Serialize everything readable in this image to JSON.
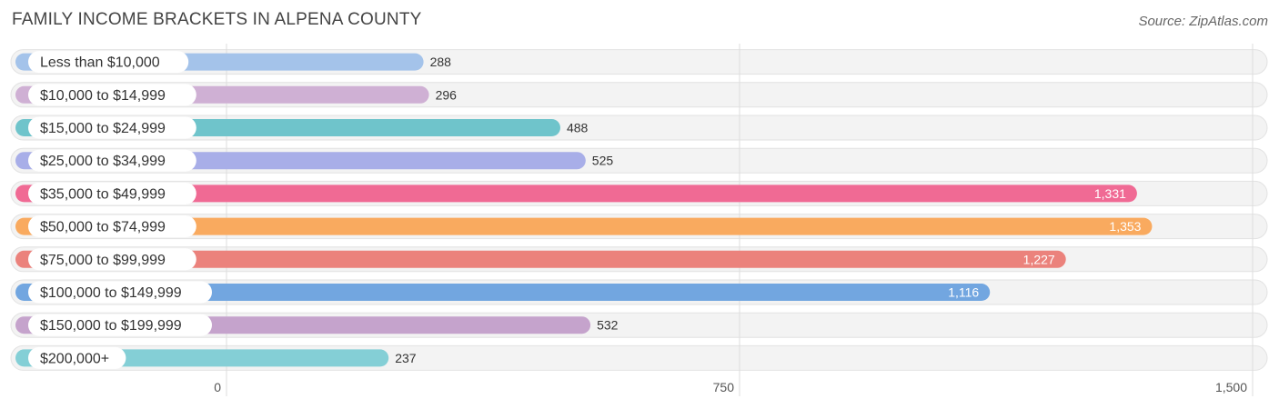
{
  "header": {
    "title": "FAMILY INCOME BRACKETS IN ALPENA COUNTY",
    "source": "Source: ZipAtlas.com"
  },
  "chart_data": {
    "type": "bar",
    "orientation": "horizontal",
    "title": "FAMILY INCOME BRACKETS IN ALPENA COUNTY",
    "categories": [
      "Less than $10,000",
      "$10,000 to $14,999",
      "$15,000 to $24,999",
      "$25,000 to $34,999",
      "$35,000 to $49,999",
      "$50,000 to $74,999",
      "$75,000 to $99,999",
      "$100,000 to $149,999",
      "$150,000 to $199,999",
      "$200,000+"
    ],
    "values": [
      288,
      296,
      488,
      525,
      1331,
      1353,
      1227,
      1116,
      532,
      237
    ],
    "value_labels": [
      "288",
      "296",
      "488",
      "525",
      "1,331",
      "1,353",
      "1,227",
      "1,116",
      "532",
      "237"
    ],
    "colors": [
      "#a4c3ea",
      "#cfb0d4",
      "#6fc4cb",
      "#a8aee8",
      "#f06a94",
      "#f9aa5f",
      "#eb827c",
      "#72a6e0",
      "#c5a3cc",
      "#84cfd6"
    ],
    "xaxis_ticks": [
      0,
      750,
      1500
    ],
    "xaxis_tick_labels": [
      "0",
      "750",
      "1,500"
    ],
    "xlim": [
      0,
      1500
    ],
    "grid": true,
    "xlabel": "",
    "ylabel": ""
  }
}
